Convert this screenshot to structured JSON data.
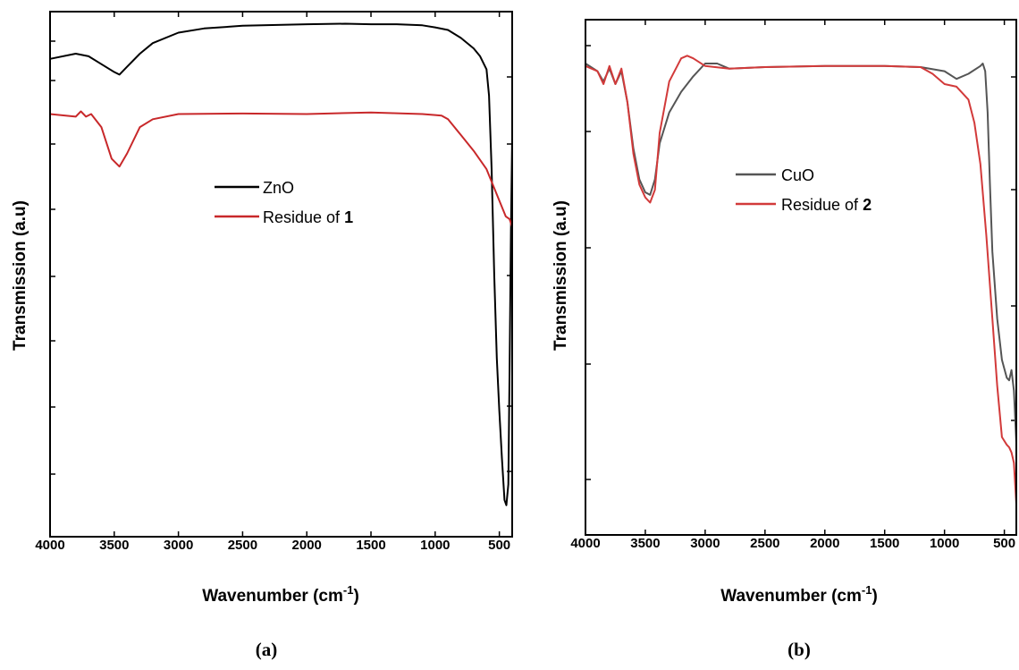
{
  "chart_data": [
    {
      "type": "line",
      "panel_label": "(a)",
      "xlabel": "Wavenumber (cm",
      "xlabel_superscript": "-1",
      "xlabel_suffix": ")",
      "ylabel": "Transmission (a.u)",
      "xlim": [
        4000,
        400
      ],
      "ylim": [
        0,
        100
      ],
      "x_ticks": [
        4000,
        3500,
        3000,
        2500,
        2000,
        1500,
        1000,
        500
      ],
      "y_tick_labels_shown": false,
      "grid": false,
      "legend": {
        "placement": "center",
        "entries": [
          {
            "prefix": "ZnO",
            "bold": ""
          },
          {
            "prefix": "Residue of ",
            "bold": "1"
          }
        ]
      },
      "series": [
        {
          "color": "#000000",
          "x": [
            4000,
            3800,
            3700,
            3600,
            3500,
            3460,
            3400,
            3300,
            3200,
            3000,
            2800,
            2500,
            2000,
            1700,
            1500,
            1300,
            1100,
            1000,
            900,
            800,
            700,
            650,
            600,
            580,
            560,
            540,
            520,
            500,
            480,
            460,
            445,
            430,
            420,
            410,
            400
          ],
          "y": [
            91.0,
            92.0,
            91.5,
            90.0,
            88.5,
            88.0,
            89.5,
            92.0,
            94.0,
            96.0,
            96.8,
            97.3,
            97.6,
            97.7,
            97.6,
            97.6,
            97.4,
            97.0,
            96.5,
            95.0,
            93.0,
            91.5,
            89.0,
            84.0,
            70.0,
            50.0,
            34.0,
            24.0,
            15.0,
            7.0,
            6.0,
            10.0,
            32.0,
            58.0,
            76.0
          ]
        },
        {
          "color": "#c8282a",
          "x": [
            4000,
            3800,
            3760,
            3720,
            3680,
            3600,
            3520,
            3460,
            3400,
            3300,
            3200,
            3000,
            2500,
            2000,
            1500,
            1100,
            1000,
            950,
            900,
            800,
            700,
            600,
            500,
            450,
            420,
            400
          ],
          "y": [
            80.5,
            80.0,
            81.0,
            80.0,
            80.5,
            78.0,
            72.0,
            70.5,
            73.0,
            78.0,
            79.5,
            80.5,
            80.6,
            80.5,
            80.8,
            80.5,
            80.3,
            80.2,
            79.5,
            76.5,
            73.5,
            70.0,
            64.0,
            61.0,
            60.5,
            59.0
          ]
        }
      ]
    },
    {
      "type": "line",
      "panel_label": "(b)",
      "xlabel": "Wavenumber (cm",
      "xlabel_superscript": "-1",
      "xlabel_suffix": ")",
      "ylabel": "Transmission (a.u)",
      "xlim": [
        4000,
        400
      ],
      "ylim": [
        0,
        100
      ],
      "x_ticks": [
        4000,
        3500,
        3000,
        2500,
        2000,
        1500,
        1000,
        500
      ],
      "y_tick_labels_shown": false,
      "grid": false,
      "legend": {
        "placement": "center",
        "entries": [
          {
            "prefix": "CuO",
            "bold": ""
          },
          {
            "prefix": "Residue of ",
            "bold": "2"
          }
        ]
      },
      "series": [
        {
          "color": "#555555",
          "x": [
            4000,
            3900,
            3850,
            3800,
            3750,
            3700,
            3650,
            3600,
            3550,
            3500,
            3460,
            3420,
            3380,
            3300,
            3200,
            3100,
            3000,
            2900,
            2800,
            2500,
            2000,
            1500,
            1200,
            1000,
            900,
            800,
            700,
            680,
            660,
            640,
            620,
            600,
            560,
            520,
            480,
            460,
            440,
            420,
            400
          ],
          "y": [
            91.5,
            90.0,
            88.0,
            90.5,
            87.5,
            90.0,
            84.0,
            75.0,
            69.0,
            66.5,
            66.0,
            69.0,
            76.0,
            82.0,
            86.0,
            89.0,
            91.5,
            91.5,
            90.5,
            90.8,
            91.0,
            91.0,
            90.8,
            90.0,
            88.5,
            89.5,
            91.0,
            91.5,
            90.0,
            82.0,
            68.0,
            55.0,
            42.0,
            34.0,
            30.5,
            30.0,
            32.0,
            28.0,
            18.0
          ]
        },
        {
          "color": "#d23a3a",
          "x": [
            4000,
            3900,
            3850,
            3800,
            3750,
            3700,
            3650,
            3600,
            3550,
            3500,
            3460,
            3420,
            3380,
            3300,
            3200,
            3150,
            3100,
            3000,
            2800,
            2500,
            2000,
            1500,
            1200,
            1100,
            1000,
            900,
            800,
            750,
            700,
            650,
            600,
            560,
            520,
            480,
            460,
            440,
            420,
            400
          ],
          "y": [
            91.0,
            90.0,
            87.5,
            91.0,
            87.5,
            90.5,
            84.0,
            74.0,
            68.0,
            65.5,
            64.5,
            67.0,
            78.0,
            88.0,
            92.5,
            93.0,
            92.5,
            91.0,
            90.5,
            90.8,
            91.0,
            91.0,
            90.8,
            89.5,
            87.5,
            87.0,
            84.5,
            80.0,
            72.0,
            58.0,
            42.0,
            29.0,
            19.0,
            17.5,
            17.0,
            16.0,
            14.0,
            6.0
          ]
        }
      ]
    }
  ]
}
